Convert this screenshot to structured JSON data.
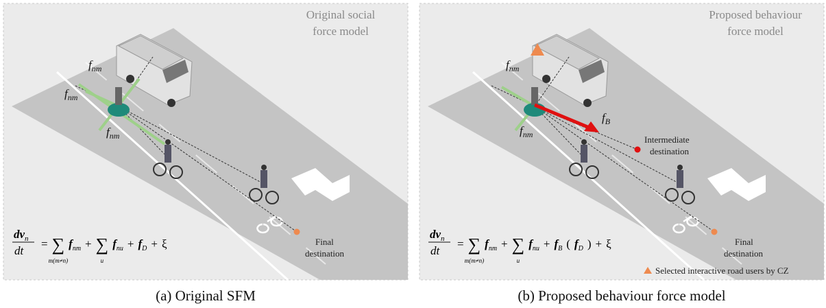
{
  "panel_a": {
    "title_lines": [
      "Original social",
      "force model"
    ],
    "force_labels": [
      {
        "symbol": "f",
        "sub": "nm"
      },
      {
        "symbol": "f",
        "sub": "nm"
      },
      {
        "symbol": "f",
        "sub": "nm"
      }
    ],
    "final_destination": [
      "Final",
      "destination"
    ],
    "equation": {
      "num": "dv",
      "num_sub": "n",
      "den": "dt",
      "tokens": [
        {
          "text": "="
        },
        {
          "text": "∑",
          "under": "m(m≠n)"
        },
        {
          "text": "f",
          "sub": "nm"
        },
        {
          "text": "+"
        },
        {
          "text": "∑",
          "under": "u"
        },
        {
          "text": "f",
          "sub": "nu"
        },
        {
          "text": "+"
        },
        {
          "text": "f",
          "sub": "D"
        },
        {
          "text": "+"
        },
        {
          "text": "ξ"
        }
      ]
    },
    "caption": "(a) Original SFM"
  },
  "panel_b": {
    "title_lines": [
      "Proposed behaviour",
      "force model"
    ],
    "force_labels": [
      {
        "symbol": "f",
        "sub": "nm"
      },
      {
        "symbol": "f",
        "sub": "nm"
      }
    ],
    "behaviour_label": {
      "symbol": "f",
      "sub": "B"
    },
    "intermediate_destination": [
      "Intermediate",
      "destination"
    ],
    "final_destination": [
      "Final",
      "destination"
    ],
    "equation": {
      "num": "dv",
      "num_sub": "n",
      "den": "dt",
      "tokens": [
        {
          "text": "="
        },
        {
          "text": "∑",
          "under": "m(m≠n)"
        },
        {
          "text": "f",
          "sub": "nm"
        },
        {
          "text": "+"
        },
        {
          "text": "∑",
          "under": "u"
        },
        {
          "text": "f",
          "sub": "nu"
        },
        {
          "text": "+"
        },
        {
          "text": "f",
          "sub": "B"
        },
        {
          "text": "("
        },
        {
          "text": "f",
          "sub": "D"
        },
        {
          "text": ")"
        },
        {
          "text": "+"
        },
        {
          "text": "ξ"
        }
      ]
    },
    "legend": "Selected interactive road users by CZ",
    "caption": "(b) Proposed behaviour force model"
  }
}
